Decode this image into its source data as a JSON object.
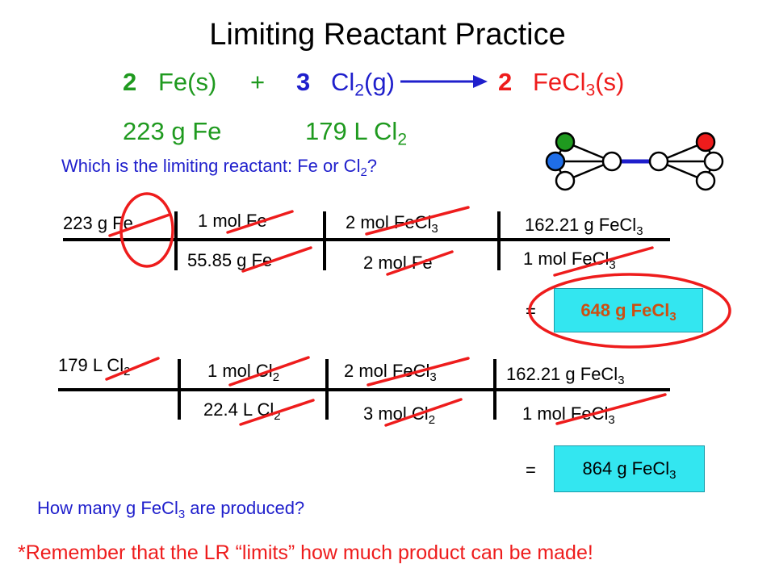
{
  "title": "Limiting Reactant Practice",
  "equation": {
    "coef_fe": "2",
    "fe": "Fe(s)",
    "plus": "+",
    "coef_cl2": "3",
    "cl2_base": "Cl",
    "cl2_sub": "2",
    "cl2_state": "(g)",
    "coef_product": "2",
    "product_base": "FeCl",
    "product_sub": "3",
    "product_state": "(s)"
  },
  "given": {
    "fe_amount": "223 g Fe",
    "cl2_amount": "179 L Cl",
    "cl2_sub": "2"
  },
  "question": {
    "text": "Which is the limiting reactant: Fe or Cl",
    "sub": "2",
    "end": "?"
  },
  "calc_fe": {
    "start": "223 g Fe",
    "f1_num": "1 mol Fe",
    "f1_den": "55.85 g Fe",
    "f2_num_base": "2 mol FeCl",
    "f2_num_sub": "3",
    "f2_den": "2 mol Fe",
    "f3_num_base": "162.21 g FeCl",
    "f3_num_sub": "3",
    "f3_den_base": "1 mol FeCl",
    "f3_den_sub": "3",
    "equals": "=",
    "result_base": "648 g FeCl",
    "result_sub": "3"
  },
  "calc_cl2": {
    "start_base": "179 L Cl",
    "start_sub": "2",
    "f1_num_base": "1 mol Cl",
    "f1_num_sub": "2",
    "f1_den_base": "22.4 L Cl",
    "f1_den_sub": "2",
    "f2_num_base": "2 mol FeCl",
    "f2_num_sub": "3",
    "f2_den_base": "3 mol Cl",
    "f2_den_sub": "2",
    "f3_num_base": "162.21 g FeCl",
    "f3_num_sub": "3",
    "f3_den_base": "1 mol FeCl",
    "f3_den_sub": "3",
    "equals": "=",
    "result_base": "864 g FeCl",
    "result_sub": "3"
  },
  "how_many": {
    "pre": "How many g FeCl",
    "sub": "3",
    "post": " are produced?"
  },
  "remember": "*Remember that the LR “limits” how much product can be made!",
  "colors": {
    "green": "#1f9a1f",
    "blue": "#1f1fcc",
    "red": "#ee1c1c",
    "result_box": "#33e6f0",
    "limiting_result_text": "#cc4f12"
  },
  "molecule_atoms": [
    "green",
    "blue",
    "white",
    "white",
    "white",
    "white",
    "red",
    "white"
  ]
}
